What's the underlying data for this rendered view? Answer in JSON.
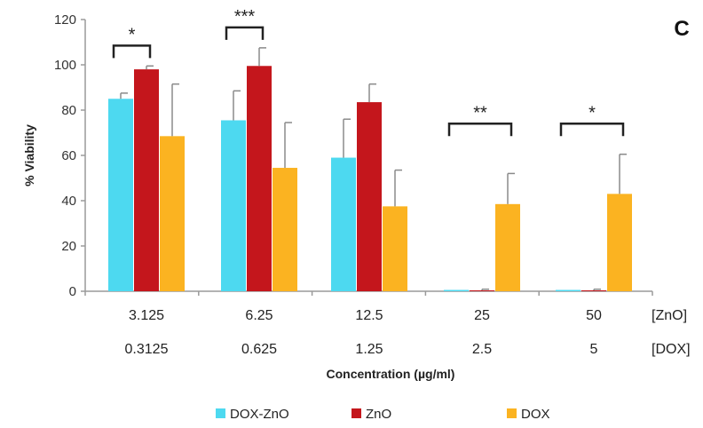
{
  "chart_data": {
    "type": "bar",
    "panel_label": "C",
    "ylabel": "% Viability",
    "xlabel": "Concentration (µg/ml)",
    "ylim": [
      0,
      120
    ],
    "y_ticks": [
      0,
      20,
      40,
      60,
      80,
      100,
      120
    ],
    "grid": false,
    "legend_position": "bottom",
    "categories": [
      "3.125",
      "6.25",
      "12.5",
      "25",
      "50"
    ],
    "category_row_label": "[ZnO]",
    "secondary_categories": [
      "0.3125",
      "0.625",
      "1.25",
      "2.5",
      "5"
    ],
    "secondary_row_label": "[DOX]",
    "series": [
      {
        "name": "DOX-ZnO",
        "color": "#4DD9F0",
        "values": [
          85,
          75.5,
          59,
          0,
          0
        ],
        "errors": [
          2.5,
          13,
          17,
          0,
          0
        ]
      },
      {
        "name": "ZnO",
        "color": "#C4161C",
        "values": [
          98,
          99.5,
          83.5,
          0.4,
          0.4
        ],
        "errors": [
          1.5,
          8,
          8,
          0.5,
          0.5
        ]
      },
      {
        "name": "DOX",
        "color": "#FBB321",
        "values": [
          68.5,
          54.5,
          37.5,
          38.5,
          43
        ],
        "errors": [
          23,
          20,
          16,
          13.5,
          17.5
        ]
      }
    ],
    "significance": [
      {
        "category": "3.125",
        "from_series": 0,
        "to_series": 1,
        "label": "*"
      },
      {
        "category": "6.25",
        "from_series": 0,
        "to_series": 1,
        "label": "***"
      },
      {
        "category": "25",
        "from_series": 0,
        "to_series": 2,
        "label": "**"
      },
      {
        "category": "50",
        "from_series": 0,
        "to_series": 2,
        "label": "*"
      }
    ]
  }
}
